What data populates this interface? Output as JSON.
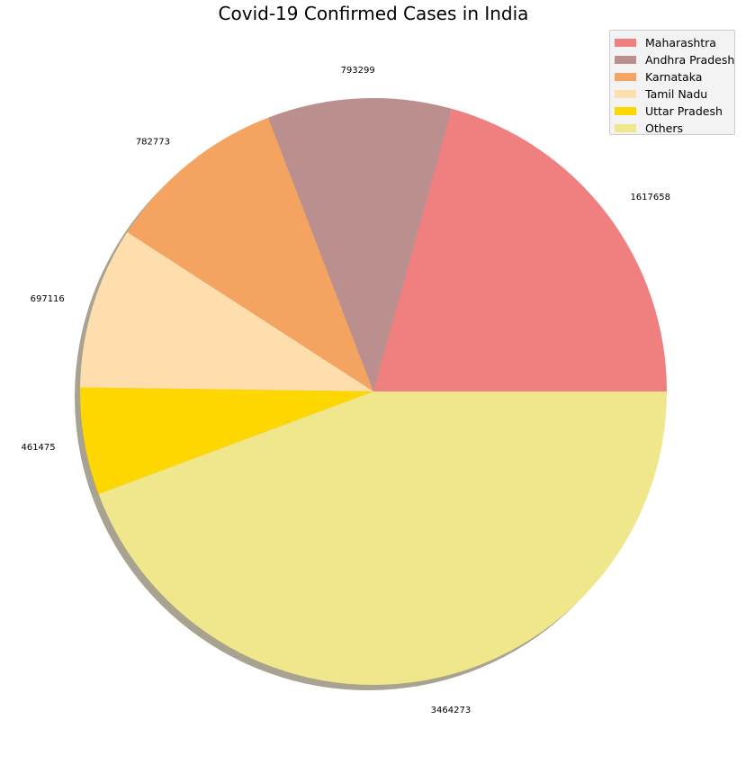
{
  "chart_data": {
    "type": "pie",
    "title": "Covid-19 Confirmed Cases in India",
    "categories": [
      "Maharashtra",
      "Andhra Pradesh",
      "Karnataka",
      "Tamil Nadu",
      "Uttar Pradesh",
      "Others"
    ],
    "values": [
      1617658,
      793299,
      782773,
      697116,
      461475,
      3464273
    ],
    "value_labels": [
      "1617658",
      "793299",
      "782773",
      "697116",
      "461475",
      "3464273"
    ],
    "colors": [
      "#f08080",
      "#bc8f8f",
      "#f4a460",
      "#ffdead",
      "#ffd700",
      "#f0e68c"
    ],
    "start_angle_deg": 0,
    "direction": "counterclockwise",
    "shadow": true,
    "legend_position": "top-right"
  }
}
